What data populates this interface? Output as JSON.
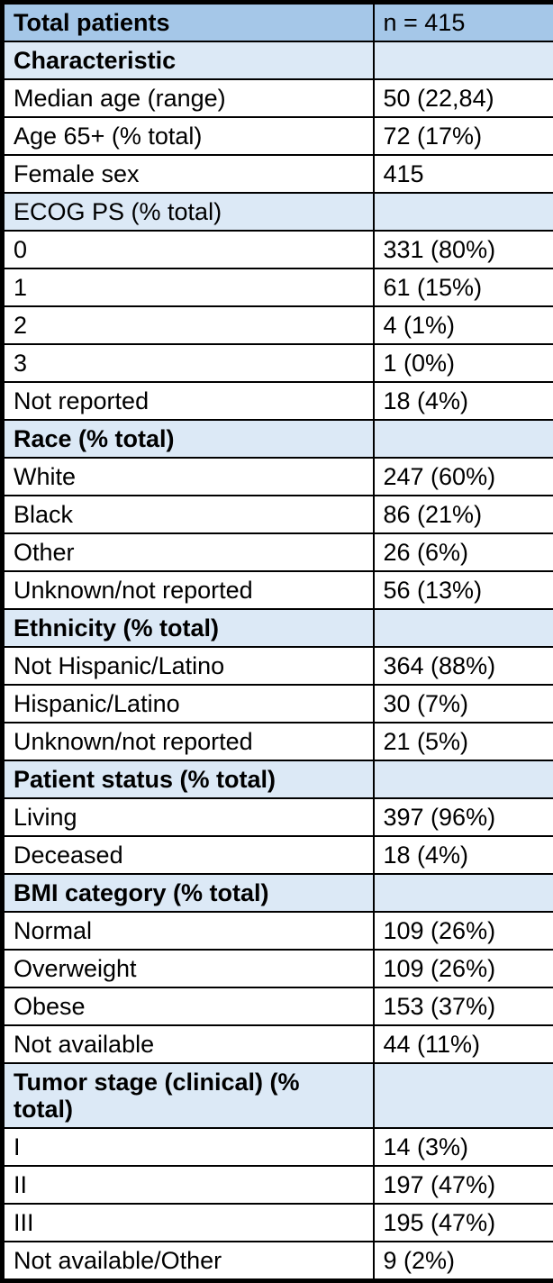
{
  "colors": {
    "header_bg": "#a5c7e8",
    "section_bg": "#dce9f6",
    "border": "#000000",
    "text": "#000000",
    "data_row_bg": "#ffffff"
  },
  "chart_data": {
    "type": "table",
    "columns": [
      "Total patients",
      "n = 415"
    ],
    "rows": [
      {
        "kind": "header",
        "bold": true,
        "label": "Total patients",
        "value": "n = 415"
      },
      {
        "kind": "section",
        "bold": true,
        "label": "Characteristic",
        "value": ""
      },
      {
        "kind": "data",
        "bold": false,
        "label": "Median age (range)",
        "value": "50 (22,84)"
      },
      {
        "kind": "data",
        "bold": false,
        "label": "Age 65+ (% total)",
        "value": "72 (17%)"
      },
      {
        "kind": "data",
        "bold": false,
        "label": "Female sex",
        "value": "415"
      },
      {
        "kind": "section",
        "bold": false,
        "label": "ECOG PS (% total)",
        "value": ""
      },
      {
        "kind": "data",
        "bold": false,
        "label": "0",
        "value": "331 (80%)"
      },
      {
        "kind": "data",
        "bold": false,
        "label": "1",
        "value": "61 (15%)"
      },
      {
        "kind": "data",
        "bold": false,
        "label": "2",
        "value": "4 (1%)"
      },
      {
        "kind": "data",
        "bold": false,
        "label": "3",
        "value": "1 (0%)"
      },
      {
        "kind": "data",
        "bold": false,
        "label": "Not reported",
        "value": "18 (4%)"
      },
      {
        "kind": "section",
        "bold": true,
        "label": "Race (% total)",
        "value": ""
      },
      {
        "kind": "data",
        "bold": false,
        "label": "White",
        "value": "247 (60%)"
      },
      {
        "kind": "data",
        "bold": false,
        "label": "Black",
        "value": "86 (21%)"
      },
      {
        "kind": "data",
        "bold": false,
        "label": "Other",
        "value": "26 (6%)"
      },
      {
        "kind": "data",
        "bold": false,
        "label": "Unknown/not reported",
        "value": "56 (13%)"
      },
      {
        "kind": "section",
        "bold": true,
        "label": "Ethnicity (% total)",
        "value": ""
      },
      {
        "kind": "data",
        "bold": false,
        "label": "Not Hispanic/Latino",
        "value": "364 (88%)"
      },
      {
        "kind": "data",
        "bold": false,
        "label": "Hispanic/Latino",
        "value": "30 (7%)"
      },
      {
        "kind": "data",
        "bold": false,
        "label": "Unknown/not reported",
        "value": "21 (5%)"
      },
      {
        "kind": "section",
        "bold": true,
        "label": "Patient status (% total)",
        "value": ""
      },
      {
        "kind": "data",
        "bold": false,
        "label": "Living",
        "value": "397 (96%)"
      },
      {
        "kind": "data",
        "bold": false,
        "label": "Deceased",
        "value": "18 (4%)"
      },
      {
        "kind": "section",
        "bold": true,
        "label": "BMI category (% total)",
        "value": ""
      },
      {
        "kind": "data",
        "bold": false,
        "label": "Normal",
        "value": "109 (26%)"
      },
      {
        "kind": "data",
        "bold": false,
        "label": "Overweight",
        "value": "109 (26%)"
      },
      {
        "kind": "data",
        "bold": false,
        "label": "Obese",
        "value": "153 (37%)"
      },
      {
        "kind": "data",
        "bold": false,
        "label": "Not available",
        "value": "44 (11%)"
      },
      {
        "kind": "section",
        "bold": true,
        "label": "Tumor stage (clinical) (% total)",
        "value": ""
      },
      {
        "kind": "data",
        "bold": false,
        "label": "I",
        "value": "14 (3%)"
      },
      {
        "kind": "data",
        "bold": false,
        "label": "II",
        "value": "197 (47%)"
      },
      {
        "kind": "data",
        "bold": false,
        "label": "III",
        "value": "195 (47%)"
      },
      {
        "kind": "data",
        "bold": false,
        "label": "Not available/Other",
        "value": "9 (2%)"
      }
    ]
  }
}
